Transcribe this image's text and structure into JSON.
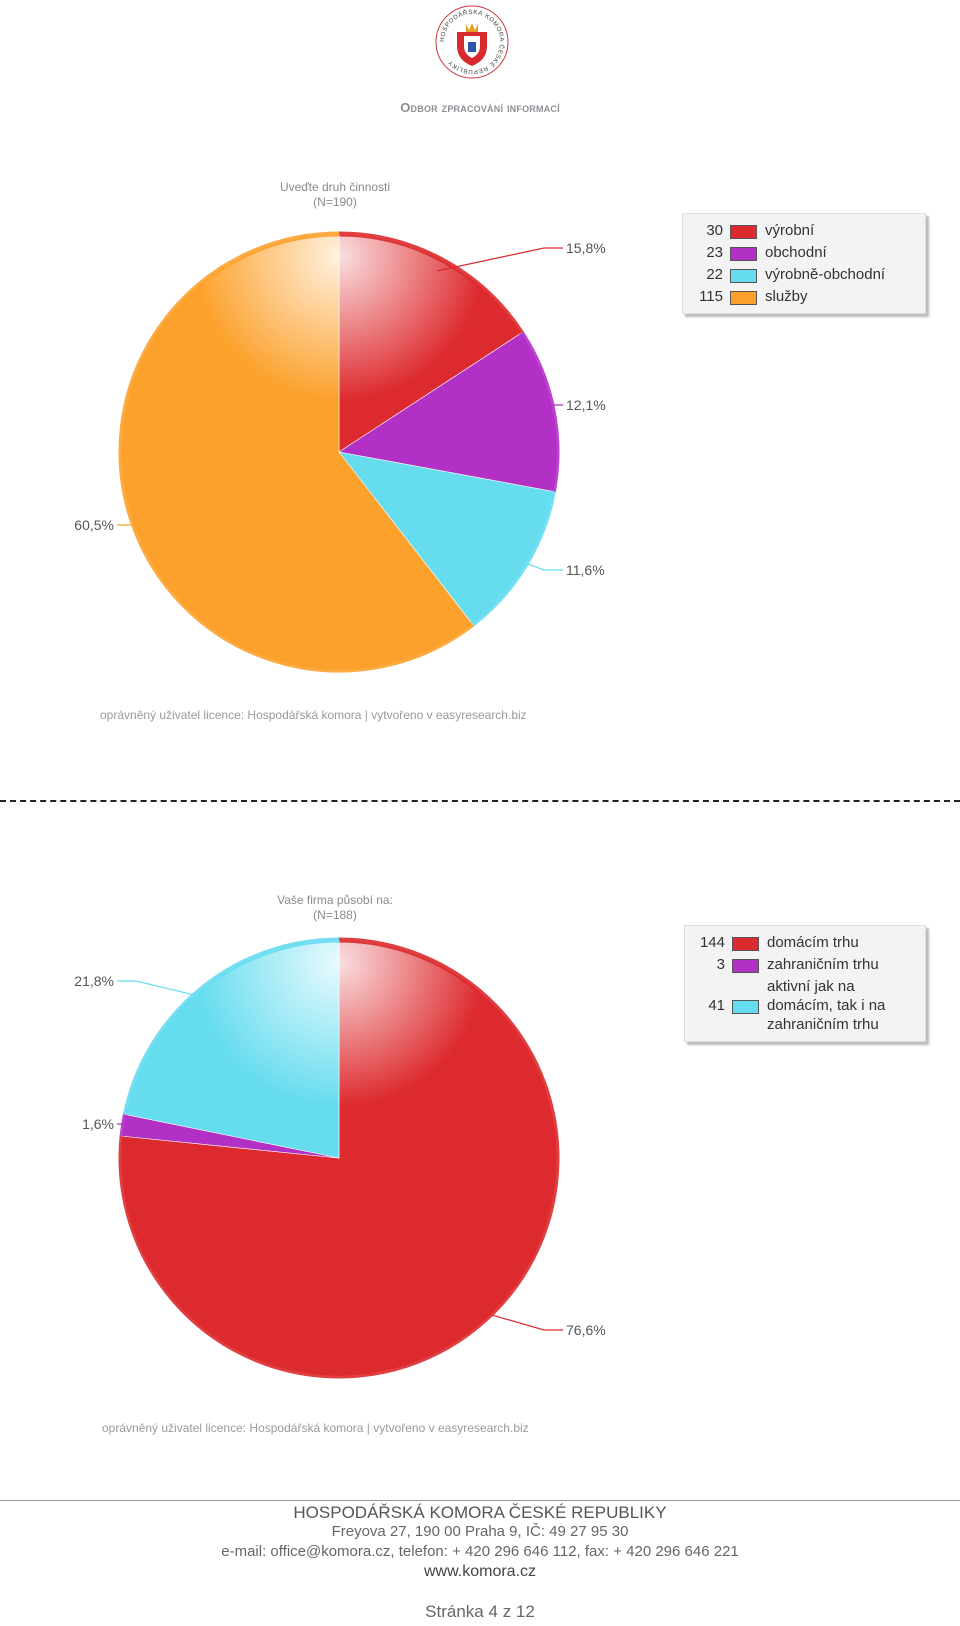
{
  "header": {
    "department": "Odbor zpracování informací"
  },
  "chart_data": [
    {
      "type": "pie",
      "title": "Uveďte druh činnosti",
      "subtitle": "(N=190)",
      "categories": [
        "výrobní",
        "obchodní",
        "výrobně-obchodní",
        "služby"
      ],
      "counts": [
        30,
        23,
        22,
        115
      ],
      "values": [
        15.8,
        12.1,
        11.6,
        60.5
      ],
      "value_labels": [
        "15,8%",
        "12,1%",
        "11,6%",
        "60,5%"
      ],
      "colors": [
        "#dd2a2e",
        "#b230c6",
        "#66dcef",
        "#fca12c"
      ],
      "legend_position": "top-right",
      "license": "oprávněný uživatel licence: Hospodářská komora | vytvořeno v easyresearch.biz"
    },
    {
      "type": "pie",
      "title": "Vaše firma působí na:",
      "subtitle": "(N=188)",
      "categories": [
        "domácím trhu",
        "zahraničním trhu",
        "aktivní jak na\ndomácím, tak i na\nzahraničním trhu"
      ],
      "counts": [
        144,
        3,
        41
      ],
      "values": [
        76.6,
        1.6,
        21.8
      ],
      "value_labels": [
        "76,6%",
        "1,6%",
        "21,8%"
      ],
      "colors": [
        "#dd2a2e",
        "#b230c6",
        "#66dcef"
      ],
      "legend_position": "top-right",
      "license": "oprávněný uživatel licence: Hospodářská komora | vytvořeno v easyresearch.biz"
    }
  ],
  "logo": {
    "text": "HOSPODÁŘSKÁ KOMORA ČESKÉ REPUBLIKY"
  },
  "footer": {
    "org": "HOSPODÁŘSKÁ KOMORA ČESKÉ REPUBLIKY",
    "address": "Freyova 27, 190 00  Praha 9, IČ: 49 27 95 30",
    "contact": "e-mail: office@komora.cz, telefon: + 420 296 646 112, fax: + 420 296 646 221",
    "web": "www.komora.cz",
    "page_prefix": "Stránka",
    "page_current": "4",
    "page_sep": "z",
    "page_total": "12"
  }
}
